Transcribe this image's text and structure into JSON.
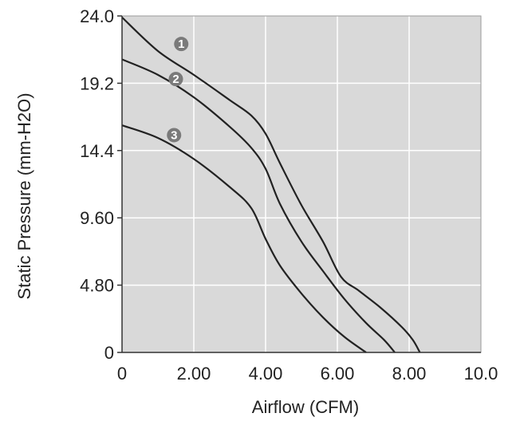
{
  "chart_data": {
    "type": "line",
    "xlabel": "Airflow (CFM)",
    "ylabel": "Static Pressure (mm-H2O)",
    "xlim": [
      0,
      10.0
    ],
    "ylim": [
      0,
      24.0
    ],
    "x_ticks": [
      "0",
      "2.00",
      "4.00",
      "6.00",
      "8.00",
      "10.0"
    ],
    "y_ticks": [
      "0",
      "4.80",
      "9.60",
      "14.4",
      "19.2",
      "24.0"
    ],
    "grid": true,
    "series": [
      {
        "name": "1",
        "x": [
          0,
          1.0,
          2.0,
          3.0,
          3.6,
          4.0,
          4.4,
          5.0,
          5.6,
          6.1,
          6.6,
          7.2,
          7.8,
          8.1,
          8.3
        ],
        "y": [
          23.9,
          21.5,
          19.8,
          18.0,
          16.9,
          15.6,
          13.5,
          10.5,
          7.9,
          5.4,
          4.4,
          3.2,
          1.8,
          0.9,
          0
        ]
      },
      {
        "name": "2",
        "x": [
          0,
          1.0,
          2.0,
          3.0,
          3.6,
          4.0,
          4.4,
          5.0,
          5.6,
          6.2,
          6.8,
          7.3,
          7.6
        ],
        "y": [
          20.9,
          19.8,
          18.2,
          16.1,
          14.6,
          13.1,
          10.6,
          7.9,
          5.8,
          3.8,
          2.1,
          0.9,
          0
        ]
      },
      {
        "name": "3",
        "x": [
          0,
          1.0,
          2.0,
          3.0,
          3.6,
          4.0,
          4.4,
          5.0,
          5.6,
          6.2,
          6.8
        ],
        "y": [
          16.2,
          15.3,
          13.8,
          11.8,
          10.3,
          8.1,
          6.2,
          4.2,
          2.5,
          1.1,
          0
        ]
      }
    ],
    "markers": [
      {
        "label": "1",
        "x": 1.65,
        "y": 22.0
      },
      {
        "label": "2",
        "x": 1.5,
        "y": 19.5
      },
      {
        "label": "3",
        "x": 1.45,
        "y": 15.5
      }
    ],
    "colors": {
      "plot_background": "#d9d9d9",
      "grid": "#ffffff",
      "line": "#222222",
      "marker_fill": "#7a7a7a",
      "marker_text": "#ffffff",
      "axis": "#333333"
    }
  }
}
